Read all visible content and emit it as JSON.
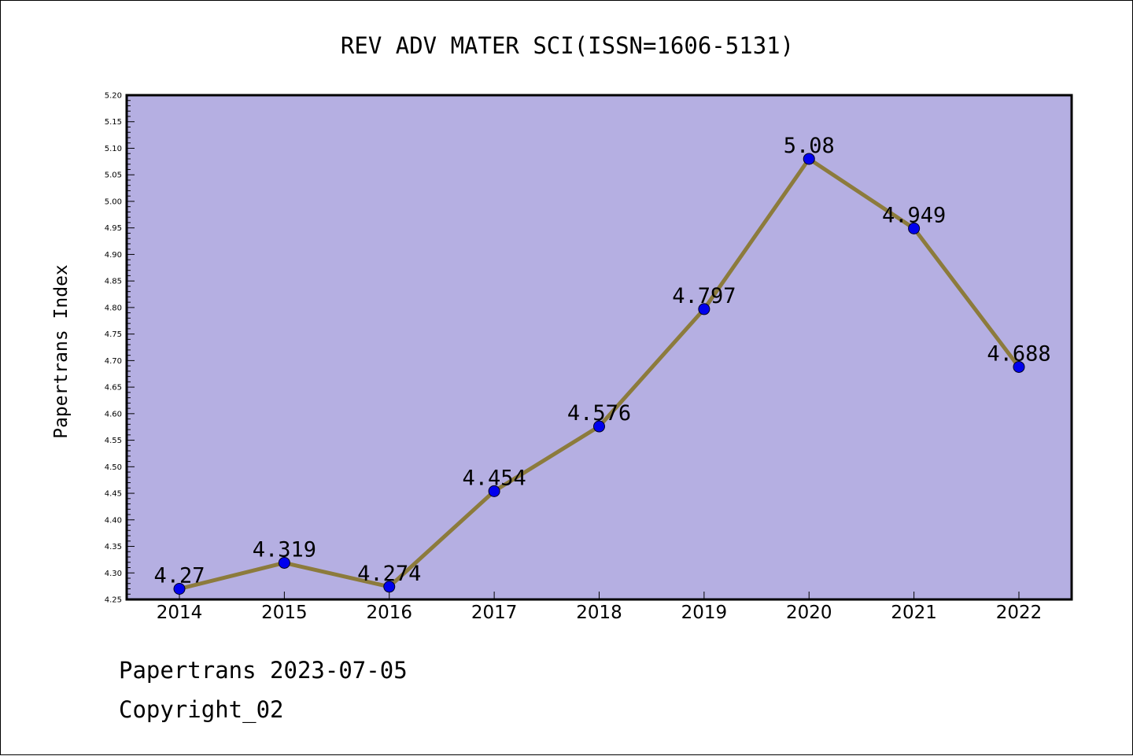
{
  "chart_data": {
    "type": "line",
    "title": "REV ADV MATER SCI(ISSN=1606-5131)",
    "xlabel": "",
    "ylabel": "Papertrans Index",
    "categories": [
      "2014",
      "2015",
      "2016",
      "2017",
      "2018",
      "2019",
      "2020",
      "2021",
      "2022"
    ],
    "values": [
      4.27,
      4.319,
      4.274,
      4.454,
      4.576,
      4.797,
      5.08,
      4.949,
      4.688
    ],
    "data_labels": [
      "4.27",
      "4.319",
      "4.274",
      "4.454",
      "4.576",
      "4.797",
      "5.08",
      "4.949",
      "4.688"
    ],
    "ylim": [
      4.25,
      5.2
    ],
    "ytick_step": 0.05,
    "grid": false,
    "legend": "none",
    "colors": {
      "plot_background": "#b5afe2",
      "line": "#8c7b3c",
      "marker": "#0000ee"
    }
  },
  "footer": {
    "line1": "Papertrans 2023-07-05",
    "line2": "Copyright_02"
  }
}
